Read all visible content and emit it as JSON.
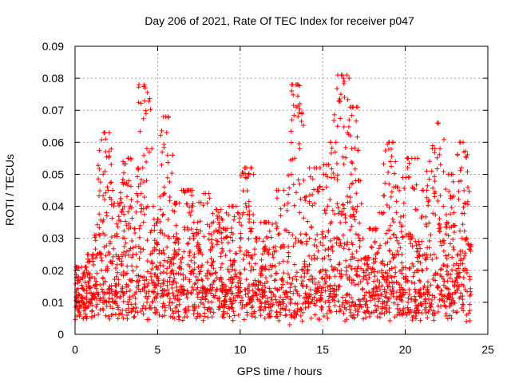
{
  "chart_data": {
    "type": "scatter",
    "title": "Day 206 of 2021, Rate Of TEC Index for receiver p047",
    "xlabel": "GPS time / hours",
    "ylabel": "ROTI / TECUs",
    "xlim": [
      0,
      25
    ],
    "ylim": [
      0,
      0.09
    ],
    "xticks": [
      "0",
      "5",
      "10",
      "15",
      "20",
      "25"
    ],
    "yticks": [
      "0",
      "0.01",
      "0.02",
      "0.03",
      "0.04",
      "0.05",
      "0.06",
      "0.07",
      "0.08",
      "0.09"
    ],
    "grid": true,
    "marker": "+",
    "color": "#ff0000",
    "series": [
      {
        "values": [
          [
            0.1,
            0.012
          ],
          [
            0.2,
            0.018
          ],
          [
            0.3,
            0.009
          ],
          [
            0.4,
            0.021
          ],
          [
            0.5,
            0.014
          ],
          [
            0.6,
            0.008
          ],
          [
            0.8,
            0.016
          ],
          [
            1.0,
            0.011
          ],
          [
            1.1,
            0.025
          ],
          [
            1.3,
            0.013
          ],
          [
            1.5,
            0.031
          ],
          [
            1.6,
            0.02
          ],
          [
            1.7,
            0.05
          ],
          [
            1.75,
            0.063
          ],
          [
            1.8,
            0.063
          ],
          [
            1.85,
            0.061
          ],
          [
            1.9,
            0.038
          ],
          [
            2.0,
            0.045
          ],
          [
            2.1,
            0.015
          ],
          [
            2.3,
            0.01
          ],
          [
            2.5,
            0.018
          ],
          [
            2.6,
            0.041
          ],
          [
            2.8,
            0.022
          ],
          [
            3.0,
            0.03
          ],
          [
            3.1,
            0.047
          ],
          [
            3.2,
            0.055
          ],
          [
            3.3,
            0.017
          ],
          [
            3.5,
            0.012
          ],
          [
            3.7,
            0.025
          ],
          [
            3.9,
            0.033
          ],
          [
            4.0,
            0.044
          ],
          [
            4.1,
            0.052
          ],
          [
            4.2,
            0.078
          ],
          [
            4.25,
            0.077
          ],
          [
            4.3,
            0.069
          ],
          [
            4.35,
            0.058
          ],
          [
            4.4,
            0.04
          ],
          [
            4.6,
            0.018
          ],
          [
            4.8,
            0.027
          ],
          [
            5.0,
            0.036
          ],
          [
            5.2,
            0.015
          ],
          [
            5.4,
            0.046
          ],
          [
            5.5,
            0.068
          ],
          [
            5.55,
            0.063
          ],
          [
            5.6,
            0.056
          ],
          [
            5.7,
            0.03
          ],
          [
            5.9,
            0.02
          ],
          [
            6.1,
            0.012
          ],
          [
            6.3,
            0.041
          ],
          [
            6.5,
            0.024
          ],
          [
            6.8,
            0.045
          ],
          [
            7.0,
            0.019
          ],
          [
            7.2,
            0.035
          ],
          [
            7.5,
            0.028
          ],
          [
            7.8,
            0.044
          ],
          [
            8.0,
            0.014
          ],
          [
            8.3,
            0.027
          ],
          [
            8.6,
            0.039
          ],
          [
            8.9,
            0.022
          ],
          [
            9.2,
            0.033
          ],
          [
            9.5,
            0.04
          ],
          [
            9.8,
            0.018
          ],
          [
            10.0,
            0.026
          ],
          [
            10.2,
            0.038
          ],
          [
            10.4,
            0.052
          ],
          [
            10.5,
            0.05
          ],
          [
            10.7,
            0.021
          ],
          [
            11.0,
            0.03
          ],
          [
            11.3,
            0.014
          ],
          [
            11.6,
            0.035
          ],
          [
            12.0,
            0.024
          ],
          [
            12.3,
            0.045
          ],
          [
            12.6,
            0.028
          ],
          [
            12.9,
            0.041
          ],
          [
            13.1,
            0.05
          ],
          [
            13.3,
            0.055
          ],
          [
            13.4,
            0.071
          ],
          [
            13.45,
            0.078
          ],
          [
            13.5,
            0.068
          ],
          [
            13.6,
            0.038
          ],
          [
            13.8,
            0.02
          ],
          [
            14.0,
            0.043
          ],
          [
            14.2,
            0.03
          ],
          [
            14.5,
            0.052
          ],
          [
            14.8,
            0.046
          ],
          [
            15.0,
            0.032
          ],
          [
            15.2,
            0.053
          ],
          [
            15.4,
            0.018
          ],
          [
            15.6,
            0.026
          ],
          [
            15.8,
            0.06
          ],
          [
            15.9,
            0.065
          ],
          [
            16.0,
            0.073
          ],
          [
            16.1,
            0.075
          ],
          [
            16.2,
            0.081
          ],
          [
            16.25,
            0.08
          ],
          [
            16.3,
            0.079
          ],
          [
            16.5,
            0.063
          ],
          [
            16.6,
            0.067
          ],
          [
            16.8,
            0.071
          ],
          [
            17.0,
            0.048
          ],
          [
            17.2,
            0.03
          ],
          [
            17.5,
            0.018
          ],
          [
            17.8,
            0.024
          ],
          [
            18.1,
            0.033
          ],
          [
            18.4,
            0.015
          ],
          [
            18.7,
            0.038
          ],
          [
            19.0,
            0.06
          ],
          [
            19.1,
            0.054
          ],
          [
            19.3,
            0.046
          ],
          [
            19.6,
            0.025
          ],
          [
            19.9,
            0.037
          ],
          [
            20.2,
            0.049
          ],
          [
            20.4,
            0.055
          ],
          [
            20.7,
            0.02
          ],
          [
            21.0,
            0.029
          ],
          [
            21.3,
            0.045
          ],
          [
            21.6,
            0.051
          ],
          [
            21.8,
            0.058
          ],
          [
            22.0,
            0.066
          ],
          [
            22.1,
            0.058
          ],
          [
            22.3,
            0.04
          ],
          [
            22.6,
            0.05
          ],
          [
            22.9,
            0.034
          ],
          [
            23.2,
            0.019
          ],
          [
            23.4,
            0.052
          ],
          [
            23.5,
            0.06
          ],
          [
            23.55,
            0.057
          ],
          [
            23.6,
            0.041
          ],
          [
            23.8,
            0.028
          ],
          [
            23.9,
            0.012
          ],
          [
            0.5,
            0.005
          ],
          [
            2.2,
            0.006
          ],
          [
            3.4,
            0.007
          ],
          [
            5.1,
            0.006
          ],
          [
            6.7,
            0.008
          ],
          [
            8.2,
            0.007
          ],
          [
            9.9,
            0.006
          ],
          [
            11.5,
            0.005
          ],
          [
            12.8,
            0.006
          ],
          [
            14.3,
            0.005
          ],
          [
            15.5,
            0.007
          ],
          [
            17.1,
            0.006
          ],
          [
            18.6,
            0.008
          ],
          [
            20.1,
            0.006
          ],
          [
            21.4,
            0.007
          ],
          [
            22.8,
            0.005
          ],
          [
            23.7,
            0.004
          ],
          [
            13.0,
            0.003
          ],
          [
            16.9,
            0.005
          ],
          [
            19.5,
            0.006
          ]
        ]
      }
    ]
  }
}
